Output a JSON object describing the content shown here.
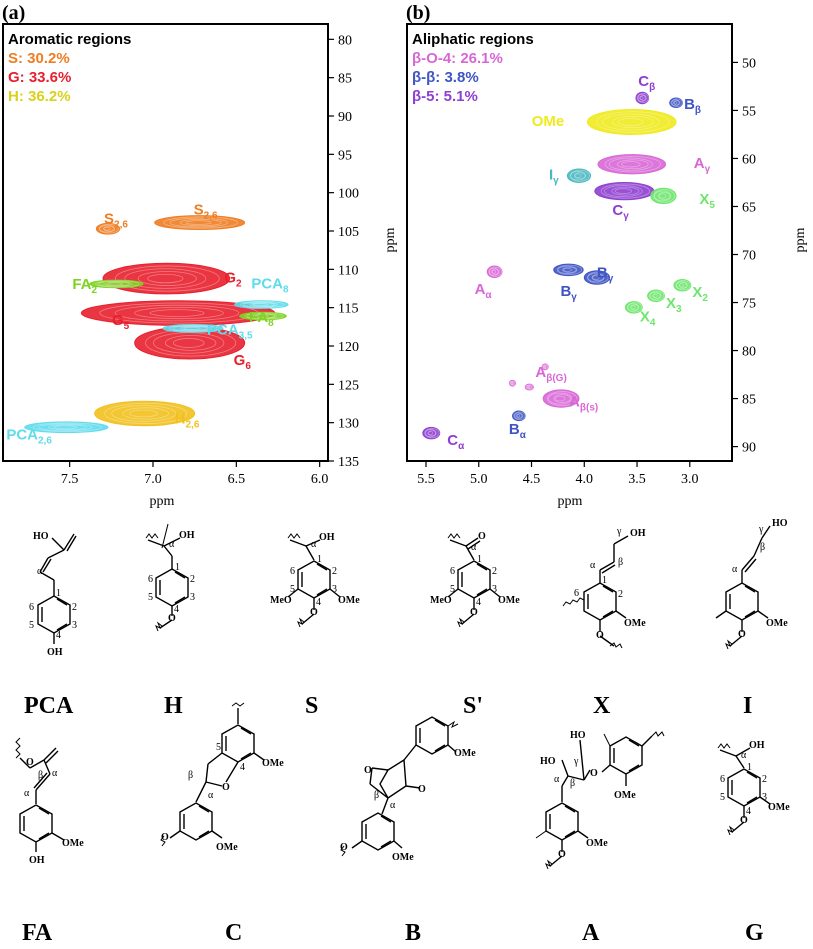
{
  "chart_data": [
    {
      "panel": "(a)",
      "type": "heatmap",
      "title": "Aromatic regions",
      "xlabel": "ppm",
      "ylabel": "ppm",
      "x_reversed": true,
      "y_reversed": true,
      "xlim": [
        7.9,
        5.95
      ],
      "ylim": [
        78,
        135
      ],
      "xticks": [
        "7.5",
        "7.0",
        "6.5",
        "6.0"
      ],
      "yticks": [
        "80",
        "85",
        "90",
        "95",
        "100",
        "105",
        "110",
        "115",
        "120",
        "125",
        "130",
        "135"
      ],
      "legend": [
        {
          "text": "S: 30.2%",
          "color": "#ef7d22"
        },
        {
          "text": "G: 33.6%",
          "color": "#e8202e"
        },
        {
          "text": "H: 36.2%",
          "color": "#d9d21a"
        }
      ],
      "colors": {
        "S": "#ef7d22",
        "G": "#e8202e",
        "H": "#f2c01e",
        "FA": "#7ed321",
        "PCA": "#5fdcec"
      },
      "contours": [
        {
          "label": "S",
          "sub": "2,6",
          "group": "S",
          "x": 7.27,
          "y": 104.7,
          "xr": 0.07,
          "yr": 0.7
        },
        {
          "label": "S",
          "sub": "2,6",
          "group": "S",
          "x": 6.72,
          "y": 103.9,
          "xr": 0.27,
          "yr": 0.9
        },
        {
          "label": "G",
          "sub": "2",
          "group": "G",
          "x": 6.92,
          "y": 111.2,
          "xr": 0.38,
          "yr": 2.0
        },
        {
          "label": "G",
          "sub": "5",
          "group": "G",
          "x": 6.85,
          "y": 115.7,
          "xr": 0.58,
          "yr": 1.6
        },
        {
          "label": "G",
          "sub": "6",
          "group": "G",
          "x": 6.78,
          "y": 119.6,
          "xr": 0.33,
          "yr": 2.1
        },
        {
          "label": "FA",
          "sub": "2",
          "group": "FA",
          "x": 7.22,
          "y": 111.9,
          "xr": 0.16,
          "yr": 0.5
        },
        {
          "label": "FA",
          "sub": "8",
          "group": "FA",
          "x": 6.34,
          "y": 116.1,
          "xr": 0.14,
          "yr": 0.5
        },
        {
          "label": "PCA",
          "sub": "8",
          "group": "PCA",
          "x": 6.35,
          "y": 114.6,
          "xr": 0.16,
          "yr": 0.5
        },
        {
          "label": "PCA",
          "sub": "3,5",
          "group": "PCA",
          "x": 6.76,
          "y": 117.7,
          "xr": 0.18,
          "yr": 0.5
        },
        {
          "label": "PCA",
          "sub": "2,6",
          "group": "PCA",
          "x": 7.52,
          "y": 130.6,
          "xr": 0.25,
          "yr": 0.7
        },
        {
          "label": "H",
          "sub": "2,6",
          "group": "H",
          "x": 7.05,
          "y": 128.8,
          "xr": 0.3,
          "yr": 1.6
        }
      ]
    },
    {
      "panel": "(b)",
      "type": "heatmap",
      "title": "Aliphatic regions",
      "xlabel": "ppm",
      "ylabel": "ppm",
      "x_reversed": true,
      "y_reversed": true,
      "xlim": [
        5.68,
        2.6
      ],
      "ylim": [
        46,
        91.5
      ],
      "xticks": [
        "5.5",
        "5.0",
        "4.5",
        "4.0",
        "3.5",
        "3.0"
      ],
      "yticks": [
        "50",
        "55",
        "60",
        "65",
        "70",
        "75",
        "80",
        "85",
        "90"
      ],
      "legend": [
        {
          "text": "β-O-4: 26.1%",
          "color": "#d867d6"
        },
        {
          "text": "β-β: 3.8%",
          "color": "#3f55c4"
        },
        {
          "text": "β-5: 5.1%",
          "color": "#8f3fd0"
        }
      ],
      "colors": {
        "A": "#d867d6",
        "B": "#3f55c4",
        "C": "#8f3fd0",
        "OMe": "#f0ea1e",
        "X": "#6ee66e",
        "I": "#4ab8c2"
      },
      "contours": [
        {
          "label": "C",
          "sub": "β",
          "group": "C",
          "x": 3.45,
          "y": 53.7,
          "xr": 0.06,
          "yr": 0.6
        },
        {
          "label": "B",
          "sub": "β",
          "group": "B",
          "x": 3.13,
          "y": 54.2,
          "xr": 0.06,
          "yr": 0.5
        },
        {
          "label": "OMe",
          "sub": "",
          "group": "OMe",
          "x": 3.55,
          "y": 56.2,
          "xr": 0.42,
          "yr": 1.3
        },
        {
          "label": "A",
          "sub": "γ",
          "group": "A",
          "x": 3.55,
          "y": 60.6,
          "xr": 0.32,
          "yr": 1.0
        },
        {
          "label": "I",
          "sub": "γ",
          "group": "I",
          "x": 4.05,
          "y": 61.8,
          "xr": 0.11,
          "yr": 0.7
        },
        {
          "label": "C",
          "sub": "γ",
          "group": "C",
          "x": 3.62,
          "y": 63.4,
          "xr": 0.28,
          "yr": 0.9
        },
        {
          "label": "X",
          "sub": "5",
          "group": "X",
          "x": 3.25,
          "y": 63.9,
          "xr": 0.12,
          "yr": 0.8
        },
        {
          "label": "A",
          "sub": "α",
          "group": "A",
          "x": 4.85,
          "y": 71.8,
          "xr": 0.07,
          "yr": 0.6
        },
        {
          "label": "B",
          "sub": "γ",
          "group": "B",
          "x": 4.15,
          "y": 71.6,
          "xr": 0.14,
          "yr": 0.6
        },
        {
          "label": "B",
          "sub": "γ",
          "group": "B",
          "x": 3.88,
          "y": 72.4,
          "xr": 0.12,
          "yr": 0.7
        },
        {
          "label": "X",
          "sub": "2",
          "group": "X",
          "x": 3.07,
          "y": 73.2,
          "xr": 0.08,
          "yr": 0.6
        },
        {
          "label": "X",
          "sub": "3",
          "group": "X",
          "x": 3.32,
          "y": 74.3,
          "xr": 0.08,
          "yr": 0.6
        },
        {
          "label": "X",
          "sub": "4",
          "group": "X",
          "x": 3.53,
          "y": 75.5,
          "xr": 0.08,
          "yr": 0.6
        },
        {
          "label": "A",
          "sub": "",
          "group": "A",
          "x": 4.37,
          "y": 81.7,
          "xr": 0.03,
          "yr": 0.3
        },
        {
          "label": "A",
          "sub": "",
          "group": "A",
          "x": 4.68,
          "y": 83.4,
          "xr": 0.03,
          "yr": 0.3
        },
        {
          "label": "A",
          "sub": "β(G)",
          "group": "A",
          "x": 4.52,
          "y": 83.8,
          "xr": 0.04,
          "yr": 0.3
        },
        {
          "label": "A",
          "sub": "β(s)",
          "group": "A",
          "x": 4.22,
          "y": 85.0,
          "xr": 0.17,
          "yr": 0.9
        },
        {
          "label": "B",
          "sub": "α",
          "group": "B",
          "x": 4.62,
          "y": 86.8,
          "xr": 0.06,
          "yr": 0.5
        },
        {
          "label": "C",
          "sub": "α",
          "group": "C",
          "x": 5.45,
          "y": 88.6,
          "xr": 0.08,
          "yr": 0.6
        }
      ]
    }
  ],
  "panels": {
    "a": {
      "letter": "(a)"
    },
    "b": {
      "letter": "(b)"
    }
  },
  "structures": {
    "PCA": "PCA",
    "H": "H",
    "S": "S",
    "Sp": "S'",
    "X": "X",
    "I": "I",
    "FA": "FA",
    "C": "C",
    "B": "B",
    "A": "A",
    "G": "G"
  },
  "substituents": {
    "ome": "OMe",
    "meo": "MeO",
    "oh": "OH",
    "ho": "HO",
    "o": "O"
  }
}
